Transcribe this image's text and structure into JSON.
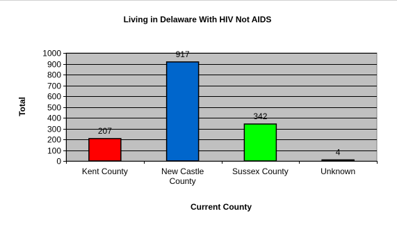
{
  "chart_data": {
    "type": "bar",
    "title": "Living in Delaware With HIV Not AIDS",
    "xlabel": "Current County",
    "ylabel": "Total",
    "categories": [
      "Kent County",
      "New Castle County",
      "Sussex County",
      "Unknown"
    ],
    "category_lines": [
      [
        "Kent County"
      ],
      [
        "New Castle",
        "County"
      ],
      [
        "Sussex County"
      ],
      [
        "Unknown"
      ]
    ],
    "values": [
      207,
      917,
      342,
      4
    ],
    "data_labels": [
      "207",
      "917",
      "342",
      "4"
    ],
    "bar_colors": [
      "#ff0000",
      "#0066cc",
      "#00ff00",
      "#000000"
    ],
    "ylim": [
      0,
      1000
    ],
    "yticks": [
      0,
      100,
      200,
      300,
      400,
      500,
      600,
      700,
      800,
      900,
      1000
    ],
    "grid": true,
    "legend": "none",
    "plot_background": "#c0c0c0"
  }
}
